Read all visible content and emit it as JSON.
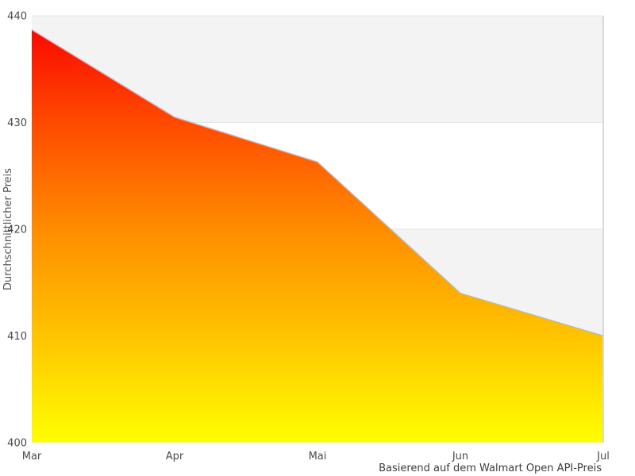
{
  "chart_data": {
    "type": "area",
    "categories": [
      "Mar",
      "Apr",
      "Mai",
      "Jun",
      "Jul"
    ],
    "values": [
      438.7,
      430.5,
      426.3,
      414,
      410
    ],
    "series": [
      {
        "name": "Durchschnittlicher Preis",
        "values": [
          438.7,
          430.5,
          426.3,
          414,
          410
        ]
      }
    ],
    "title": "",
    "xlabel": "",
    "ylabel": "Durchschnittlicher Preis",
    "caption": "Basierend auf dem Walmart Open API-Preis",
    "ylim": [
      400,
      440
    ],
    "yticks": [
      400,
      410,
      420,
      430,
      440
    ],
    "grid": "horizontal alternating bands, gray between 410-420 and 430-440",
    "legend": "none",
    "colors": {
      "band_gray": "#f3f3f3",
      "gridline": "#e5e5e5",
      "border": "#d9d9d9",
      "line": "#a3bdd9",
      "tick_text": "#4a4a4a",
      "gradient_stops": [
        {
          "offset": 0,
          "color": "#f80000"
        },
        {
          "offset": 0.25,
          "color": "#ff4a00"
        },
        {
          "offset": 0.5,
          "color": "#ff8c00"
        },
        {
          "offset": 0.75,
          "color": "#ffc400"
        },
        {
          "offset": 1,
          "color": "#ffff00"
        }
      ]
    }
  }
}
